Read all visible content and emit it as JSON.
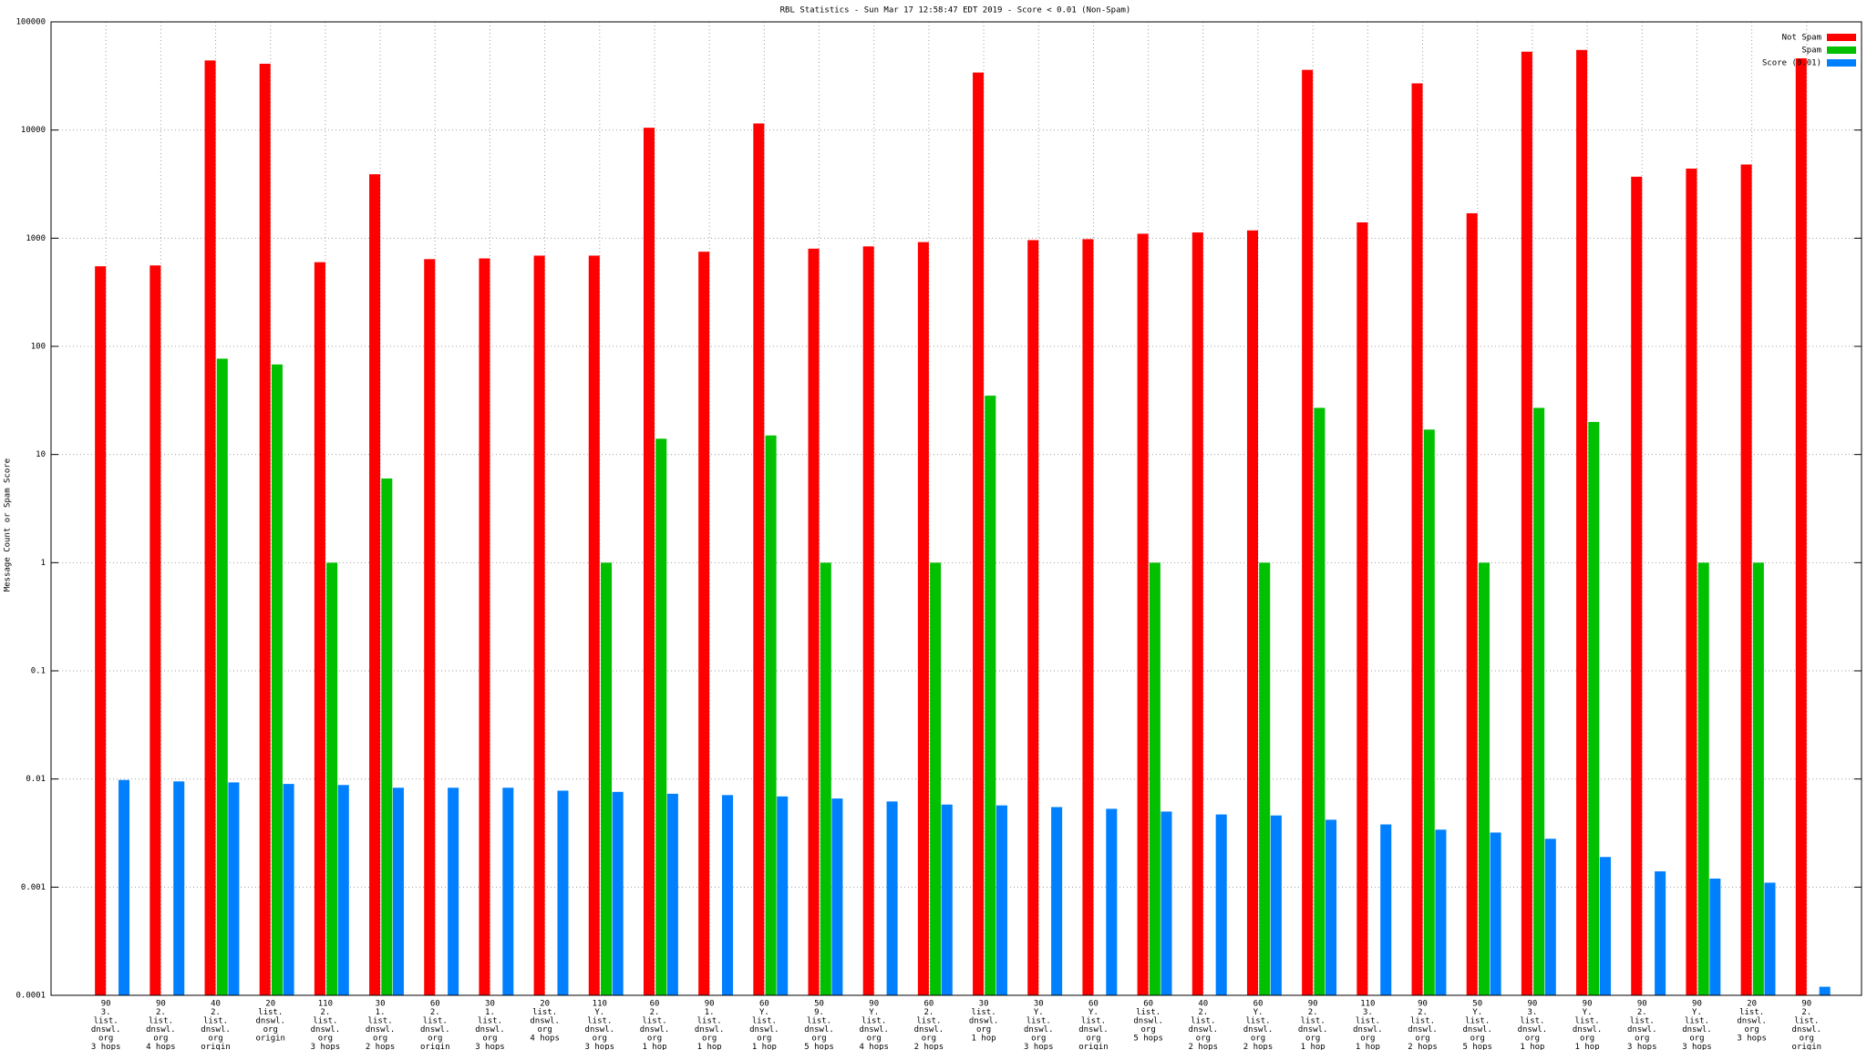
{
  "chart_data": {
    "type": "bar",
    "title": "RBL Statistics - Sun Mar 17 12:58:47 EDT 2019 - Score < 0.01 (Non-Spam)",
    "y_label": "Message Count or Spam Score",
    "log_scale": true,
    "grid": true,
    "legend_position": "top-right",
    "ylim": [
      0.0001,
      100000
    ],
    "yticks": [
      0.0001,
      0.001,
      0.01,
      0.1,
      1,
      10,
      100,
      1000,
      10000,
      100000
    ],
    "categories": [
      [
        "90",
        "3.",
        "list.",
        "dnswl.",
        "org",
        "3 hops"
      ],
      [
        "90",
        "2.",
        "list.",
        "dnswl.",
        "org",
        "4 hops"
      ],
      [
        "40",
        "2.",
        "list.",
        "dnswl.",
        "org",
        "origin"
      ],
      [
        "20",
        "list.",
        "dnswl.",
        "org",
        "origin"
      ],
      [
        "110",
        "2.",
        "list.",
        "dnswl.",
        "org",
        "3 hops"
      ],
      [
        "30",
        "1.",
        "list.",
        "dnswl.",
        "org",
        "2 hops"
      ],
      [
        "60",
        "2.",
        "list.",
        "dnswl.",
        "org",
        "origin"
      ],
      [
        "30",
        "1.",
        "list.",
        "dnswl.",
        "org",
        "3 hops"
      ],
      [
        "20",
        "list.",
        "dnswl.",
        "org",
        "4 hops"
      ],
      [
        "110",
        "Y.",
        "list.",
        "dnswl.",
        "org",
        "3 hops"
      ],
      [
        "60",
        "2.",
        "list.",
        "dnswl.",
        "org",
        "1 hop"
      ],
      [
        "90",
        "1.",
        "list.",
        "dnswl.",
        "org",
        "1 hop"
      ],
      [
        "60",
        "Y.",
        "list.",
        "dnswl.",
        "org",
        "1 hop"
      ],
      [
        "50",
        "9.",
        "list.",
        "dnswl.",
        "org",
        "5 hops"
      ],
      [
        "90",
        "Y.",
        "list.",
        "dnswl.",
        "org",
        "4 hops"
      ],
      [
        "60",
        "2.",
        "list.",
        "dnswl.",
        "org",
        "2 hops"
      ],
      [
        "30",
        "list.",
        "dnswl.",
        "org",
        "1 hop"
      ],
      [
        "30",
        "Y.",
        "list.",
        "dnswl.",
        "org",
        "3 hops"
      ],
      [
        "60",
        "Y.",
        "list.",
        "dnswl.",
        "org",
        "origin"
      ],
      [
        "60",
        "list.",
        "dnswl.",
        "org",
        "5 hops"
      ],
      [
        "40",
        "2.",
        "list.",
        "dnswl.",
        "org",
        "2 hops"
      ],
      [
        "60",
        "Y.",
        "list.",
        "dnswl.",
        "org",
        "2 hops"
      ],
      [
        "90",
        "2.",
        "list.",
        "dnswl.",
        "org",
        "1 hop"
      ],
      [
        "110",
        "3.",
        "list.",
        "dnswl.",
        "org",
        "1 hop"
      ],
      [
        "90",
        "2.",
        "list.",
        "dnswl.",
        "org",
        "2 hops"
      ],
      [
        "50",
        "Y.",
        "list.",
        "dnswl.",
        "org",
        "5 hops"
      ],
      [
        "90",
        "3.",
        "list.",
        "dnswl.",
        "org",
        "1 hop"
      ],
      [
        "90",
        "Y.",
        "list.",
        "dnswl.",
        "org",
        "1 hop"
      ],
      [
        "90",
        "2.",
        "list.",
        "dnswl.",
        "org",
        "3 hops"
      ],
      [
        "90",
        "Y.",
        "list.",
        "dnswl.",
        "org",
        "3 hops"
      ],
      [
        "20",
        "list.",
        "dnswl.",
        "org",
        "3 hops"
      ],
      [
        "90",
        "2.",
        "list.",
        "dnswl.",
        "org",
        "origin"
      ]
    ],
    "series": [
      {
        "name": "Not Spam",
        "color": "#ff0000",
        "values": [
          550,
          560,
          44000,
          41000,
          600,
          3900,
          640,
          650,
          690,
          690,
          10500,
          750,
          11500,
          800,
          840,
          920,
          34000,
          960,
          980,
          1100,
          1130,
          1180,
          36000,
          1400,
          27000,
          1700,
          53000,
          55000,
          3700,
          4400,
          4800,
          46000
        ]
      },
      {
        "name": "Spam",
        "color": "#00c000",
        "values": [
          null,
          null,
          77,
          68,
          1,
          6,
          null,
          null,
          null,
          1,
          14,
          null,
          15,
          1,
          null,
          1,
          35,
          null,
          null,
          1,
          null,
          1,
          27,
          null,
          17,
          1,
          27,
          20,
          null,
          1,
          1,
          null
        ]
      },
      {
        "name": "Score (0.01)",
        "color": "#0080ff",
        "values": [
          0.0098,
          0.0095,
          0.0093,
          0.009,
          0.0088,
          0.0083,
          0.0083,
          0.0083,
          0.0078,
          0.0076,
          0.0073,
          0.0071,
          0.0069,
          0.0066,
          0.0062,
          0.0058,
          0.0057,
          0.0055,
          0.0053,
          0.005,
          0.0047,
          0.0046,
          0.0042,
          0.0038,
          0.0034,
          0.0032,
          0.0028,
          0.0019,
          0.0014,
          0.0012,
          0.0011,
          0.00012
        ]
      }
    ]
  }
}
